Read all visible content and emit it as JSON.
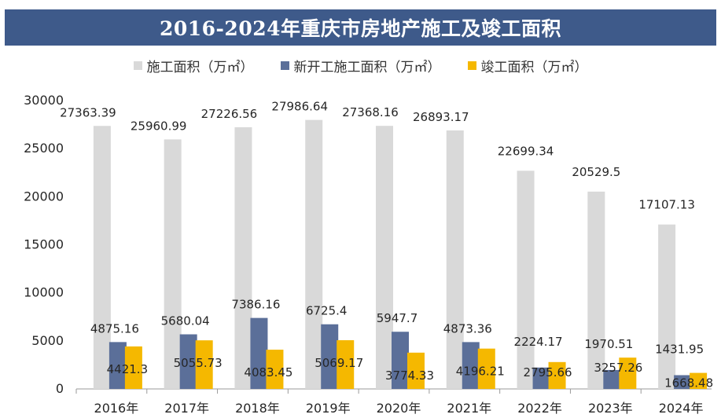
{
  "chart_data": {
    "type": "bar",
    "title": "2016-2024年重庆市房地产施工及竣工面积",
    "categories": [
      "2016年",
      "2017年",
      "2018年",
      "2019年",
      "2020年",
      "2021年",
      "2022年",
      "2023年",
      "2024年"
    ],
    "series": [
      {
        "name": "施工面积（万㎡）",
        "color": "#d9d9d9",
        "values": [
          27363.39,
          25960.99,
          27226.56,
          27986.64,
          27368.16,
          26893.17,
          22699.34,
          20529.5,
          17107.13
        ]
      },
      {
        "name": "新开工施工面积（万㎡）",
        "color": "#5b6f99",
        "values": [
          4875.16,
          5680.04,
          7386.16,
          6725.4,
          5947.7,
          4873.36,
          2224.17,
          1970.51,
          1431.95
        ]
      },
      {
        "name": "竣工面积（万㎡）",
        "color": "#f5b800",
        "values": [
          4421.3,
          5055.73,
          4083.45,
          5069.17,
          3774.33,
          4196.21,
          2795.66,
          3257.26,
          1668.48
        ]
      }
    ],
    "ylim": [
      0,
      30000
    ],
    "yticks": [
      0,
      5000,
      10000,
      15000,
      20000,
      25000,
      30000
    ],
    "grid": false,
    "legend": "top"
  }
}
